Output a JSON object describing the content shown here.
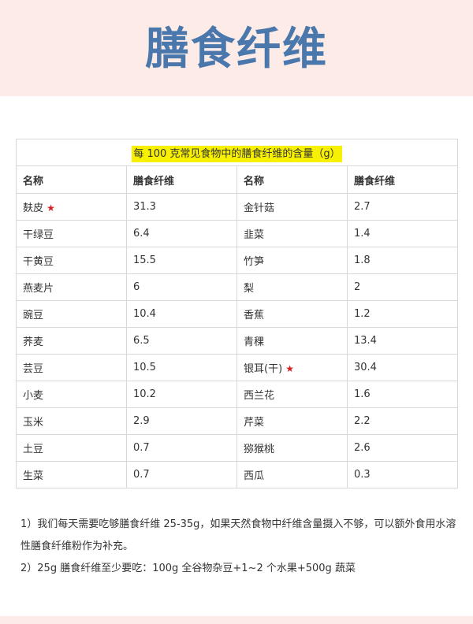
{
  "title": "膳食纤维",
  "table": {
    "caption": "每 100 克常见食物中的膳食纤维的含量（g）",
    "headers": [
      "名称",
      "膳食纤维",
      "名称",
      "膳食纤维"
    ],
    "rows": [
      {
        "name1": "麸皮",
        "star1": "★",
        "val1": "31.3",
        "name2": "金针菇",
        "star2": "",
        "val2": "2.7"
      },
      {
        "name1": "干绿豆",
        "star1": "",
        "val1": "6.4",
        "name2": "韭菜",
        "star2": "",
        "val2": "1.4"
      },
      {
        "name1": "干黄豆",
        "star1": "",
        "val1": "15.5",
        "name2": "竹笋",
        "star2": "",
        "val2": "1.8"
      },
      {
        "name1": "燕麦片",
        "star1": "",
        "val1": "6",
        "name2": "梨",
        "star2": "",
        "val2": "2"
      },
      {
        "name1": "豌豆",
        "star1": "",
        "val1": "10.4",
        "name2": "香蕉",
        "star2": "",
        "val2": "1.2"
      },
      {
        "name1": "荞麦",
        "star1": "",
        "val1": "6.5",
        "name2": "青稞",
        "star2": "",
        "val2": "13.4"
      },
      {
        "name1": "芸豆",
        "star1": "",
        "val1": "10.5",
        "name2": "银耳(干)",
        "star2": "★",
        "val2": "30.4"
      },
      {
        "name1": "小麦",
        "star1": "",
        "val1": "10.2",
        "name2": "西兰花",
        "star2": "",
        "val2": "1.6"
      },
      {
        "name1": "玉米",
        "star1": "",
        "val1": "2.9",
        "name2": "芹菜",
        "star2": "",
        "val2": "2.2"
      },
      {
        "name1": "土豆",
        "star1": "",
        "val1": "0.7",
        "name2": "猕猴桃",
        "star2": "",
        "val2": "2.6"
      },
      {
        "name1": "生菜",
        "star1": "",
        "val1": "0.7",
        "name2": "西瓜",
        "star2": "",
        "val2": "0.3"
      }
    ]
  },
  "notes": [
    "1）我们每天需要吃够膳食纤维 25-35g，如果天然食物中纤维含量摄入不够，可以额外食用水溶性膳食纤维粉作为补充。",
    "2）25g 膳食纤维至少要吃：100g 全谷物杂豆+1~2 个水果+500g 蔬菜"
  ],
  "colors": {
    "title": "#4a78ad",
    "banner": "#fcebe6",
    "highlight": "#f7f000",
    "star": "#d62020"
  }
}
